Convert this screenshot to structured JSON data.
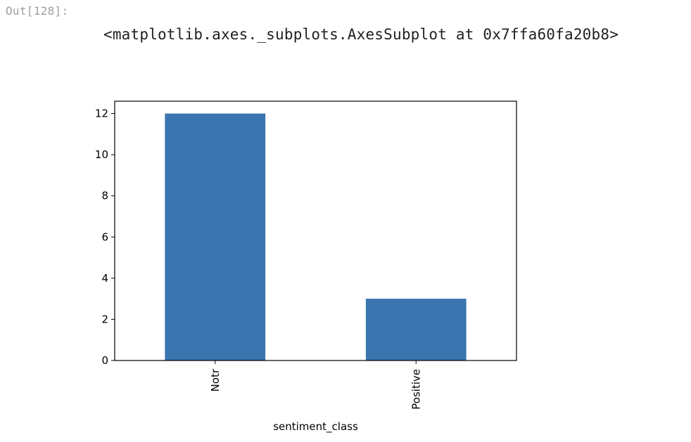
{
  "cell": {
    "prompt": "Out[128]:",
    "repr": "<matplotlib.axes._subplots.AxesSubplot at 0x7ffa60fa20b8>"
  },
  "chart_data": {
    "type": "bar",
    "categories": [
      "Notr",
      "Positive"
    ],
    "values": [
      12,
      3
    ],
    "title": "",
    "xlabel": "sentiment_class",
    "ylabel": "",
    "ylim": [
      0,
      12.6
    ],
    "yticks": [
      0,
      2,
      4,
      6,
      8,
      10,
      12
    ],
    "grid": false,
    "legend": "none",
    "bar_color": "#3a75af",
    "xtick_rotation": "vertical"
  }
}
